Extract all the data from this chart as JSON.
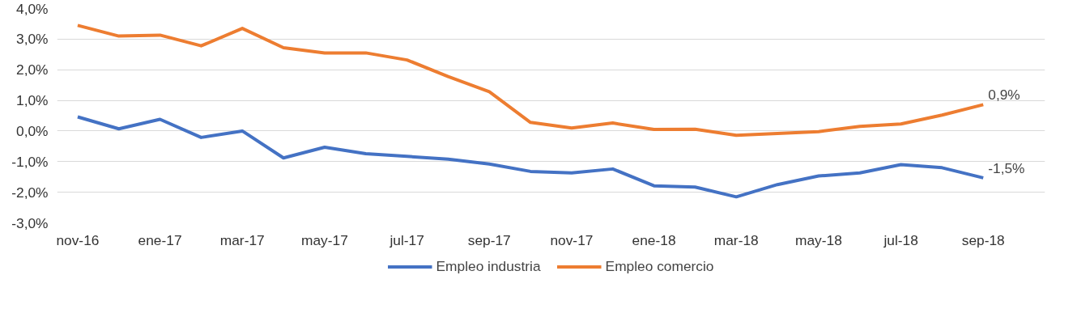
{
  "chart_data": {
    "type": "line",
    "categories": [
      "nov-16",
      null,
      "ene-17",
      null,
      "mar-17",
      null,
      "may-17",
      null,
      "jul-17",
      null,
      "sep-17",
      null,
      "nov-17",
      null,
      "ene-18",
      null,
      "mar-18",
      null,
      "may-18",
      null,
      "jul-18",
      null,
      "sep-18"
    ],
    "series": [
      {
        "name": "Empleo industria",
        "color": "#4472c4",
        "values": [
          0.46,
          0.07,
          0.38,
          -0.21,
          0.0,
          -0.88,
          -0.53,
          -0.74,
          -0.83,
          -0.92,
          -1.08,
          -1.32,
          -1.37,
          -1.24,
          -1.79,
          -1.83,
          -2.15,
          -1.75,
          -1.47,
          -1.37,
          -1.1,
          -1.2,
          -1.53
        ]
      },
      {
        "name": "Empleo comercio",
        "color": "#ed7d31",
        "values": [
          3.45,
          3.1,
          3.13,
          2.78,
          3.35,
          2.72,
          2.55,
          2.55,
          2.32,
          1.78,
          1.28,
          0.28,
          0.1,
          0.26,
          0.05,
          0.06,
          -0.14,
          -0.08,
          -0.02,
          0.15,
          0.23,
          0.52,
          0.86
        ]
      }
    ],
    "ylim": [
      -3,
      4
    ],
    "yticks": [
      {
        "value": -3,
        "label": "-3,0%"
      },
      {
        "value": -2,
        "label": "-2,0%"
      },
      {
        "value": -1,
        "label": "-1,0%"
      },
      {
        "value": 0,
        "label": "0,0%"
      },
      {
        "value": 1,
        "label": "1,0%"
      },
      {
        "value": 2,
        "label": "2,0%"
      },
      {
        "value": 3,
        "label": "3,0%"
      },
      {
        "value": 4,
        "label": "4,0%"
      }
    ],
    "annotations": [
      {
        "text": "0,9%",
        "x": "sep-18",
        "y": 0.86
      },
      {
        "text": "-1,5%",
        "x": "sep-18",
        "y": -1.53
      }
    ],
    "grid": "y",
    "legend": "bottom",
    "marker": "none",
    "line_style": "solid"
  }
}
